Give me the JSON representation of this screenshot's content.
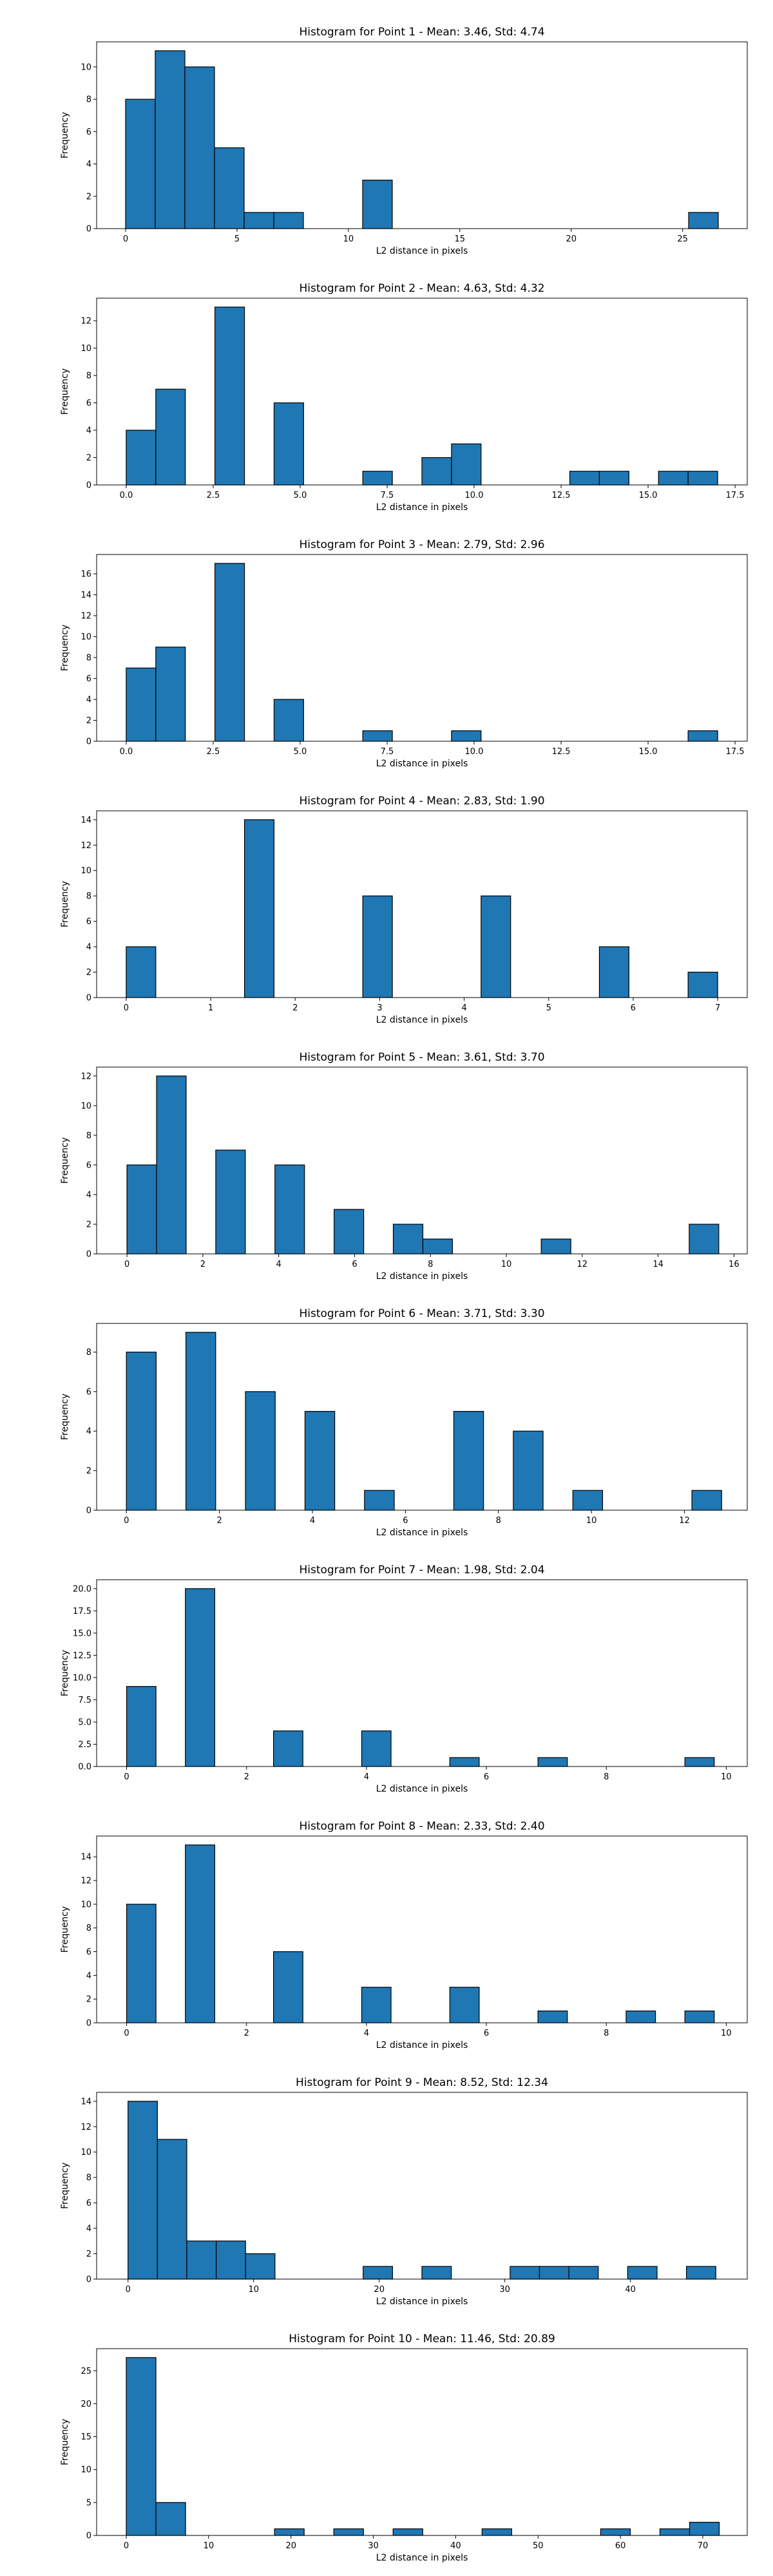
{
  "chart_data": [
    {
      "type": "bar",
      "title": "Histogram for Point 1 - Mean: 3.46, Std: 4.74",
      "xlabel": "L2 distance in pixels",
      "ylabel": "Frequency",
      "xlim": [
        -1.3,
        27.9
      ],
      "ylim": [
        0,
        11.55
      ],
      "xticks": [
        0,
        5,
        10,
        15,
        20,
        25
      ],
      "xtick_labels": [
        "0",
        "5",
        "10",
        "15",
        "20",
        "25"
      ],
      "yticks": [
        0,
        2,
        4,
        6,
        8,
        10
      ],
      "ytick_labels": [
        "0",
        "2",
        "4",
        "6",
        "8",
        "10"
      ],
      "bin_edges": [
        0,
        1.33,
        2.66,
        3.99,
        5.32,
        6.65,
        7.98,
        9.31,
        10.64,
        11.97,
        13.3,
        14.63,
        15.96,
        17.29,
        18.62,
        19.95,
        21.28,
        22.61,
        23.94,
        25.27,
        26.6
      ],
      "values": [
        8,
        11,
        10,
        5,
        1,
        1,
        0,
        0,
        3,
        0,
        0,
        0,
        0,
        0,
        0,
        0,
        0,
        0,
        0,
        1
      ],
      "grid": false,
      "color": "#1f77b4"
    },
    {
      "type": "bar",
      "title": "Histogram for Point 2 - Mean: 4.63, Std: 4.32",
      "xlabel": "L2 distance in pixels",
      "ylabel": "Frequency",
      "xlim": [
        -0.85,
        17.85
      ],
      "ylim": [
        0,
        13.65
      ],
      "xticks": [
        0,
        2.5,
        5,
        7.5,
        10,
        12.5,
        15,
        17.5
      ],
      "xtick_labels": [
        "0.0",
        "2.5",
        "5.0",
        "7.5",
        "10.0",
        "12.5",
        "15.0",
        "17.5"
      ],
      "yticks": [
        0,
        2,
        4,
        6,
        8,
        10,
        12
      ],
      "ytick_labels": [
        "0",
        "2",
        "4",
        "6",
        "8",
        "10",
        "12"
      ],
      "bin_edges": [
        0,
        0.85,
        1.7,
        2.55,
        3.4,
        4.25,
        5.1,
        5.95,
        6.8,
        7.65,
        8.5,
        9.35,
        10.2,
        11.05,
        11.9,
        12.75,
        13.6,
        14.45,
        15.3,
        16.15,
        17.0
      ],
      "values": [
        4,
        7,
        0,
        13,
        0,
        6,
        0,
        0,
        1,
        0,
        2,
        3,
        0,
        0,
        0,
        1,
        1,
        0,
        1,
        1
      ],
      "grid": false,
      "color": "#1f77b4"
    },
    {
      "type": "bar",
      "title": "Histogram for Point 3 - Mean: 2.79, Std: 2.96",
      "xlabel": "L2 distance in pixels",
      "ylabel": "Frequency",
      "xlim": [
        -0.85,
        17.85
      ],
      "ylim": [
        0,
        17.85
      ],
      "xticks": [
        0,
        2.5,
        5,
        7.5,
        10,
        12.5,
        15,
        17.5
      ],
      "xtick_labels": [
        "0.0",
        "2.5",
        "5.0",
        "7.5",
        "10.0",
        "12.5",
        "15.0",
        "17.5"
      ],
      "yticks": [
        0,
        2,
        4,
        6,
        8,
        10,
        12,
        14,
        16
      ],
      "ytick_labels": [
        "0",
        "2",
        "4",
        "6",
        "8",
        "10",
        "12",
        "14",
        "16"
      ],
      "bin_edges": [
        0,
        0.85,
        1.7,
        2.55,
        3.4,
        4.25,
        5.1,
        5.95,
        6.8,
        7.65,
        8.5,
        9.35,
        10.2,
        11.05,
        11.9,
        12.75,
        13.6,
        14.45,
        15.3,
        16.15,
        17.0
      ],
      "values": [
        7,
        9,
        0,
        17,
        0,
        4,
        0,
        0,
        1,
        0,
        0,
        1,
        0,
        0,
        0,
        0,
        0,
        0,
        0,
        1
      ],
      "grid": false,
      "color": "#1f77b4"
    },
    {
      "type": "bar",
      "title": "Histogram for Point 4 - Mean: 2.83, Std: 1.90",
      "xlabel": "L2 distance in pixels",
      "ylabel": "Frequency",
      "xlim": [
        -0.35,
        7.35
      ],
      "ylim": [
        0,
        14.7
      ],
      "xticks": [
        0,
        1,
        2,
        3,
        4,
        5,
        6,
        7
      ],
      "xtick_labels": [
        "0",
        "1",
        "2",
        "3",
        "4",
        "5",
        "6",
        "7"
      ],
      "yticks": [
        0,
        2,
        4,
        6,
        8,
        10,
        12,
        14
      ],
      "ytick_labels": [
        "0",
        "2",
        "4",
        "6",
        "8",
        "10",
        "12",
        "14"
      ],
      "bin_edges": [
        0,
        0.35,
        0.7,
        1.05,
        1.4,
        1.75,
        2.1,
        2.45,
        2.8,
        3.15,
        3.5,
        3.85,
        4.2,
        4.55,
        4.9,
        5.25,
        5.6,
        5.95,
        6.3,
        6.65,
        7.0
      ],
      "values": [
        4,
        0,
        0,
        0,
        14,
        0,
        0,
        0,
        8,
        0,
        0,
        0,
        8,
        0,
        0,
        0,
        4,
        0,
        0,
        2
      ],
      "grid": false,
      "color": "#1f77b4"
    },
    {
      "type": "bar",
      "title": "Histogram for Point 5 - Mean: 3.61, Std: 3.70",
      "xlabel": "L2 distance in pixels",
      "ylabel": "Frequency",
      "xlim": [
        -0.8,
        16.35
      ],
      "ylim": [
        0,
        12.6
      ],
      "xticks": [
        0,
        2,
        4,
        6,
        8,
        10,
        12,
        14,
        16
      ],
      "xtick_labels": [
        "0",
        "2",
        "4",
        "6",
        "8",
        "10",
        "12",
        "14",
        "16"
      ],
      "yticks": [
        0,
        2,
        4,
        6,
        8,
        10,
        12
      ],
      "ytick_labels": [
        "0",
        "2",
        "4",
        "6",
        "8",
        "10",
        "12"
      ],
      "bin_edges": [
        0,
        0.78,
        1.56,
        2.34,
        3.12,
        3.9,
        4.68,
        5.46,
        6.24,
        7.02,
        7.8,
        8.58,
        9.36,
        10.14,
        10.92,
        11.7,
        12.48,
        13.26,
        14.04,
        14.82,
        15.6
      ],
      "values": [
        6,
        12,
        0,
        7,
        0,
        6,
        0,
        3,
        0,
        2,
        1,
        0,
        0,
        0,
        1,
        0,
        0,
        0,
        0,
        2
      ],
      "grid": false,
      "color": "#1f77b4"
    },
    {
      "type": "bar",
      "title": "Histogram for Point 6 - Mean: 3.71, Std: 3.30",
      "xlabel": "L2 distance in pixels",
      "ylabel": "Frequency",
      "xlim": [
        -0.64,
        13.35
      ],
      "ylim": [
        0,
        9.45
      ],
      "xticks": [
        0,
        2,
        4,
        6,
        8,
        10,
        12
      ],
      "xtick_labels": [
        "0",
        "2",
        "4",
        "6",
        "8",
        "10",
        "12"
      ],
      "yticks": [
        0,
        2,
        4,
        6,
        8
      ],
      "ytick_labels": [
        "0",
        "2",
        "4",
        "6",
        "8"
      ],
      "bin_edges": [
        0,
        0.64,
        1.28,
        1.92,
        2.56,
        3.2,
        3.84,
        4.48,
        5.12,
        5.76,
        6.4,
        7.04,
        7.68,
        8.32,
        8.96,
        9.6,
        10.24,
        10.88,
        11.52,
        12.16,
        12.8
      ],
      "values": [
        8,
        0,
        9,
        0,
        6,
        0,
        5,
        0,
        1,
        0,
        0,
        5,
        0,
        4,
        0,
        1,
        0,
        0,
        0,
        1
      ],
      "grid": false,
      "color": "#1f77b4"
    },
    {
      "type": "bar",
      "title": "Histogram for Point 7 - Mean: 1.98, Std: 2.04",
      "xlabel": "L2 distance in pixels",
      "ylabel": "Frequency",
      "xlim": [
        -0.5,
        10.35
      ],
      "ylim": [
        0,
        21
      ],
      "xticks": [
        0,
        2,
        4,
        6,
        8,
        10
      ],
      "xtick_labels": [
        "0",
        "2",
        "4",
        "6",
        "8",
        "10"
      ],
      "yticks": [
        0,
        2.5,
        5,
        7.5,
        10,
        12.5,
        15,
        17.5,
        20
      ],
      "ytick_labels": [
        "0.0",
        "2.5",
        "5.0",
        "7.5",
        "10.0",
        "12.5",
        "15.0",
        "17.5",
        "20.0"
      ],
      "bin_edges": [
        0,
        0.49,
        0.98,
        1.47,
        1.96,
        2.45,
        2.94,
        3.43,
        3.92,
        4.41,
        4.9,
        5.39,
        5.88,
        6.37,
        6.86,
        7.35,
        7.84,
        8.33,
        8.82,
        9.31,
        9.8
      ],
      "values": [
        9,
        0,
        20,
        0,
        0,
        4,
        0,
        0,
        4,
        0,
        0,
        1,
        0,
        0,
        1,
        0,
        0,
        0,
        0,
        1
      ],
      "grid": false,
      "color": "#1f77b4"
    },
    {
      "type": "bar",
      "title": "Histogram for Point 8 - Mean: 2.33, Std: 2.40",
      "xlabel": "L2 distance in pixels",
      "ylabel": "Frequency",
      "xlim": [
        -0.5,
        10.35
      ],
      "ylim": [
        0,
        15.75
      ],
      "xticks": [
        0,
        2,
        4,
        6,
        8,
        10
      ],
      "xtick_labels": [
        "0",
        "2",
        "4",
        "6",
        "8",
        "10"
      ],
      "yticks": [
        0,
        2,
        4,
        6,
        8,
        10,
        12,
        14
      ],
      "ytick_labels": [
        "0",
        "2",
        "4",
        "6",
        "8",
        "10",
        "12",
        "14"
      ],
      "bin_edges": [
        0,
        0.49,
        0.98,
        1.47,
        1.96,
        2.45,
        2.94,
        3.43,
        3.92,
        4.41,
        4.9,
        5.39,
        5.88,
        6.37,
        6.86,
        7.35,
        7.84,
        8.33,
        8.82,
        9.31,
        9.8
      ],
      "values": [
        10,
        0,
        15,
        0,
        0,
        6,
        0,
        0,
        3,
        0,
        0,
        3,
        0,
        0,
        1,
        0,
        0,
        1,
        0,
        1
      ],
      "grid": false,
      "color": "#1f77b4"
    },
    {
      "type": "bar",
      "title": "Histogram for Point 9 - Mean: 8.52, Std: 12.34",
      "xlabel": "L2 distance in pixels",
      "ylabel": "Frequency",
      "xlim": [
        -2.5,
        49.3
      ],
      "ylim": [
        0,
        14.7
      ],
      "xticks": [
        0,
        10,
        20,
        30,
        40
      ],
      "xtick_labels": [
        "0",
        "10",
        "20",
        "30",
        "40"
      ],
      "yticks": [
        0,
        2,
        4,
        6,
        8,
        10,
        12,
        14
      ],
      "ytick_labels": [
        "0",
        "2",
        "4",
        "6",
        "8",
        "10",
        "12",
        "14"
      ],
      "bin_edges": [
        0,
        2.34,
        4.68,
        7.02,
        9.36,
        11.7,
        14.04,
        16.38,
        18.72,
        21.06,
        23.4,
        25.74,
        28.08,
        30.42,
        32.76,
        35.1,
        37.44,
        39.78,
        42.12,
        44.46,
        46.8
      ],
      "values": [
        14,
        11,
        3,
        3,
        2,
        0,
        0,
        0,
        1,
        0,
        1,
        0,
        0,
        1,
        1,
        1,
        0,
        1,
        0,
        1
      ],
      "grid": false,
      "color": "#1f77b4"
    },
    {
      "type": "bar",
      "title": "Histogram for Point 10 - Mean: 11.46, Std: 20.89",
      "xlabel": "L2 distance in pixels",
      "ylabel": "Frequency",
      "xlim": [
        -3.6,
        75.4
      ],
      "ylim": [
        0,
        28.35
      ],
      "xticks": [
        0,
        10,
        20,
        30,
        40,
        50,
        60,
        70
      ],
      "xtick_labels": [
        "0",
        "10",
        "20",
        "30",
        "40",
        "50",
        "60",
        "70"
      ],
      "yticks": [
        0,
        5,
        10,
        15,
        20,
        25
      ],
      "ytick_labels": [
        "0",
        "5",
        "10",
        "15",
        "20",
        "25"
      ],
      "bin_edges": [
        0,
        3.6,
        7.2,
        10.8,
        14.4,
        18.0,
        21.6,
        25.2,
        28.8,
        32.4,
        36.0,
        39.6,
        43.2,
        46.8,
        50.4,
        54.0,
        57.6,
        61.2,
        64.8,
        68.4,
        72.0
      ],
      "values": [
        27,
        5,
        0,
        0,
        0,
        1,
        0,
        1,
        0,
        1,
        0,
        0,
        1,
        0,
        0,
        0,
        1,
        0,
        1,
        2
      ],
      "grid": false,
      "color": "#1f77b4"
    }
  ]
}
